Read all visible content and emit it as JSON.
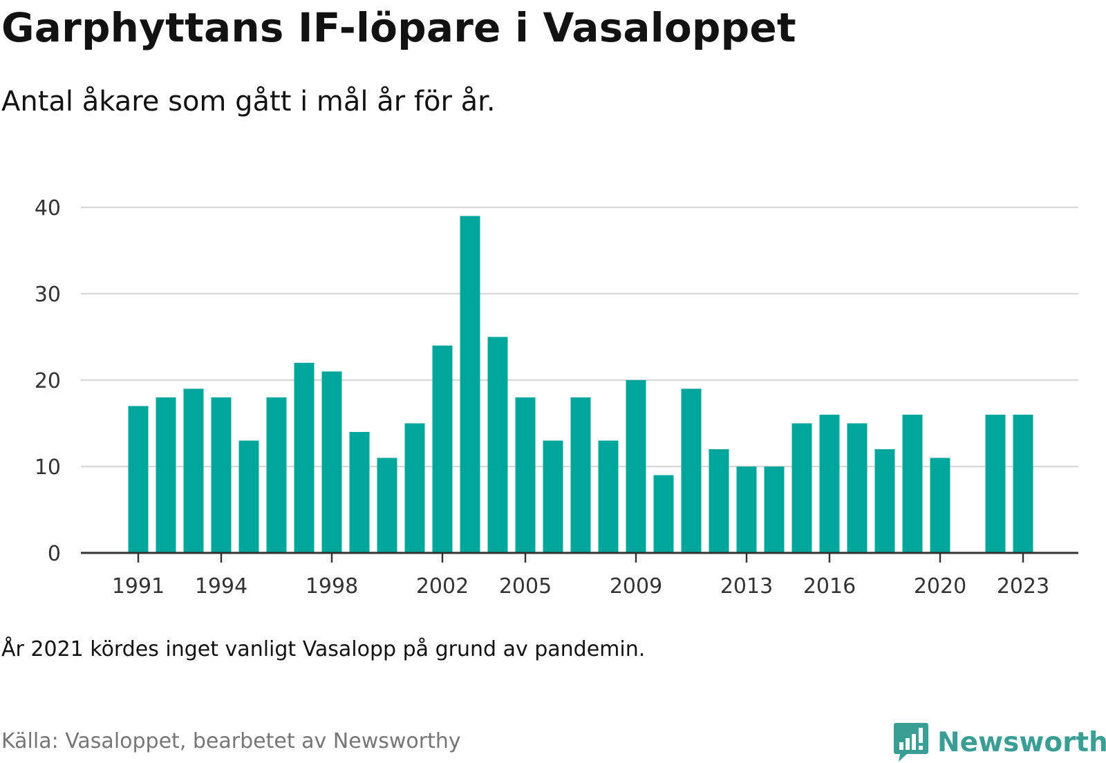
{
  "title": "Garphyttans IF-löpare i Vasaloppet",
  "subtitle": "Antal åkare som gått i mål år för år.",
  "note": "År 2021 kördes inget vanligt Vasalopp på grund av pandemin.",
  "source": "Källa: Vasaloppet, bearbetet av Newsworthy",
  "brand": "Newsworthy",
  "colors": {
    "bar": "#00a59b",
    "brand": "#3b9e95",
    "grid": "#d9d9d9",
    "axis": "#333333",
    "text": "#121212",
    "source": "#767676"
  },
  "chart_data": {
    "type": "bar",
    "categories": [
      "1991",
      "1992",
      "1993",
      "1994",
      "1995",
      "1996",
      "1997",
      "1998",
      "1999",
      "2000",
      "2001",
      "2002",
      "2003",
      "2004",
      "2005",
      "2006",
      "2007",
      "2008",
      "2009",
      "2010",
      "2011",
      "2012",
      "2013",
      "2014",
      "2015",
      "2016",
      "2017",
      "2018",
      "2019",
      "2020",
      "2021",
      "2022",
      "2023"
    ],
    "values": [
      17,
      18,
      19,
      18,
      13,
      18,
      22,
      21,
      14,
      11,
      15,
      24,
      39,
      25,
      18,
      13,
      18,
      13,
      20,
      9,
      19,
      12,
      10,
      10,
      15,
      16,
      15,
      12,
      16,
      11,
      null,
      16,
      16
    ],
    "tick_labels": [
      "1991",
      "1994",
      "1998",
      "2002",
      "2005",
      "2009",
      "2013",
      "2016",
      "2020",
      "2023"
    ],
    "y_ticks": [
      0,
      10,
      20,
      30,
      40
    ],
    "ylim": [
      0,
      40
    ],
    "grid": true,
    "legend": "none",
    "xlabel": "",
    "ylabel": ""
  }
}
